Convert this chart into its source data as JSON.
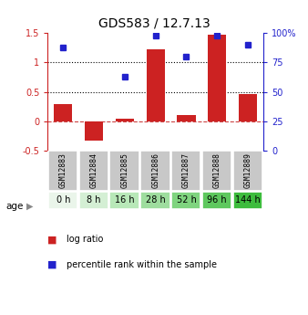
{
  "title": "GDS583 / 12.7.13",
  "samples": [
    "GSM12883",
    "GSM12884",
    "GSM12885",
    "GSM12886",
    "GSM12887",
    "GSM12888",
    "GSM12889"
  ],
  "ages": [
    "0 h",
    "8 h",
    "16 h",
    "28 h",
    "52 h",
    "96 h",
    "144 h"
  ],
  "log_ratio": [
    0.3,
    -0.33,
    0.05,
    1.23,
    0.1,
    1.48,
    0.47
  ],
  "percentile_rank": [
    0.88,
    null,
    0.63,
    0.98,
    0.8,
    0.98,
    0.9
  ],
  "bar_color": "#cc2222",
  "dot_color": "#2222cc",
  "ylim_left": [
    -0.5,
    1.5
  ],
  "ylim_right": [
    0,
    100
  ],
  "yticks_left": [
    -0.5,
    0,
    0.5,
    1.0,
    1.5
  ],
  "yticks_right": [
    0,
    25,
    50,
    75,
    100
  ],
  "ytick_labels_left": [
    "-0.5",
    "0",
    "0.5",
    "1",
    "1.5"
  ],
  "ytick_labels_right": [
    "0",
    "25",
    "50",
    "75",
    "100%"
  ],
  "hline_y": [
    0.5,
    1.0
  ],
  "zero_line_y": 0,
  "age_colors": [
    "#eaf5ea",
    "#d4efd4",
    "#b8e8b8",
    "#9edd9e",
    "#7fd47f",
    "#5ec85e",
    "#3dbc3d"
  ],
  "sample_bg_color": "#c8c8c8",
  "legend_bar_label": "log ratio",
  "legend_dot_label": "percentile rank within the sample",
  "figsize": [
    3.38,
    3.45
  ],
  "dpi": 100
}
